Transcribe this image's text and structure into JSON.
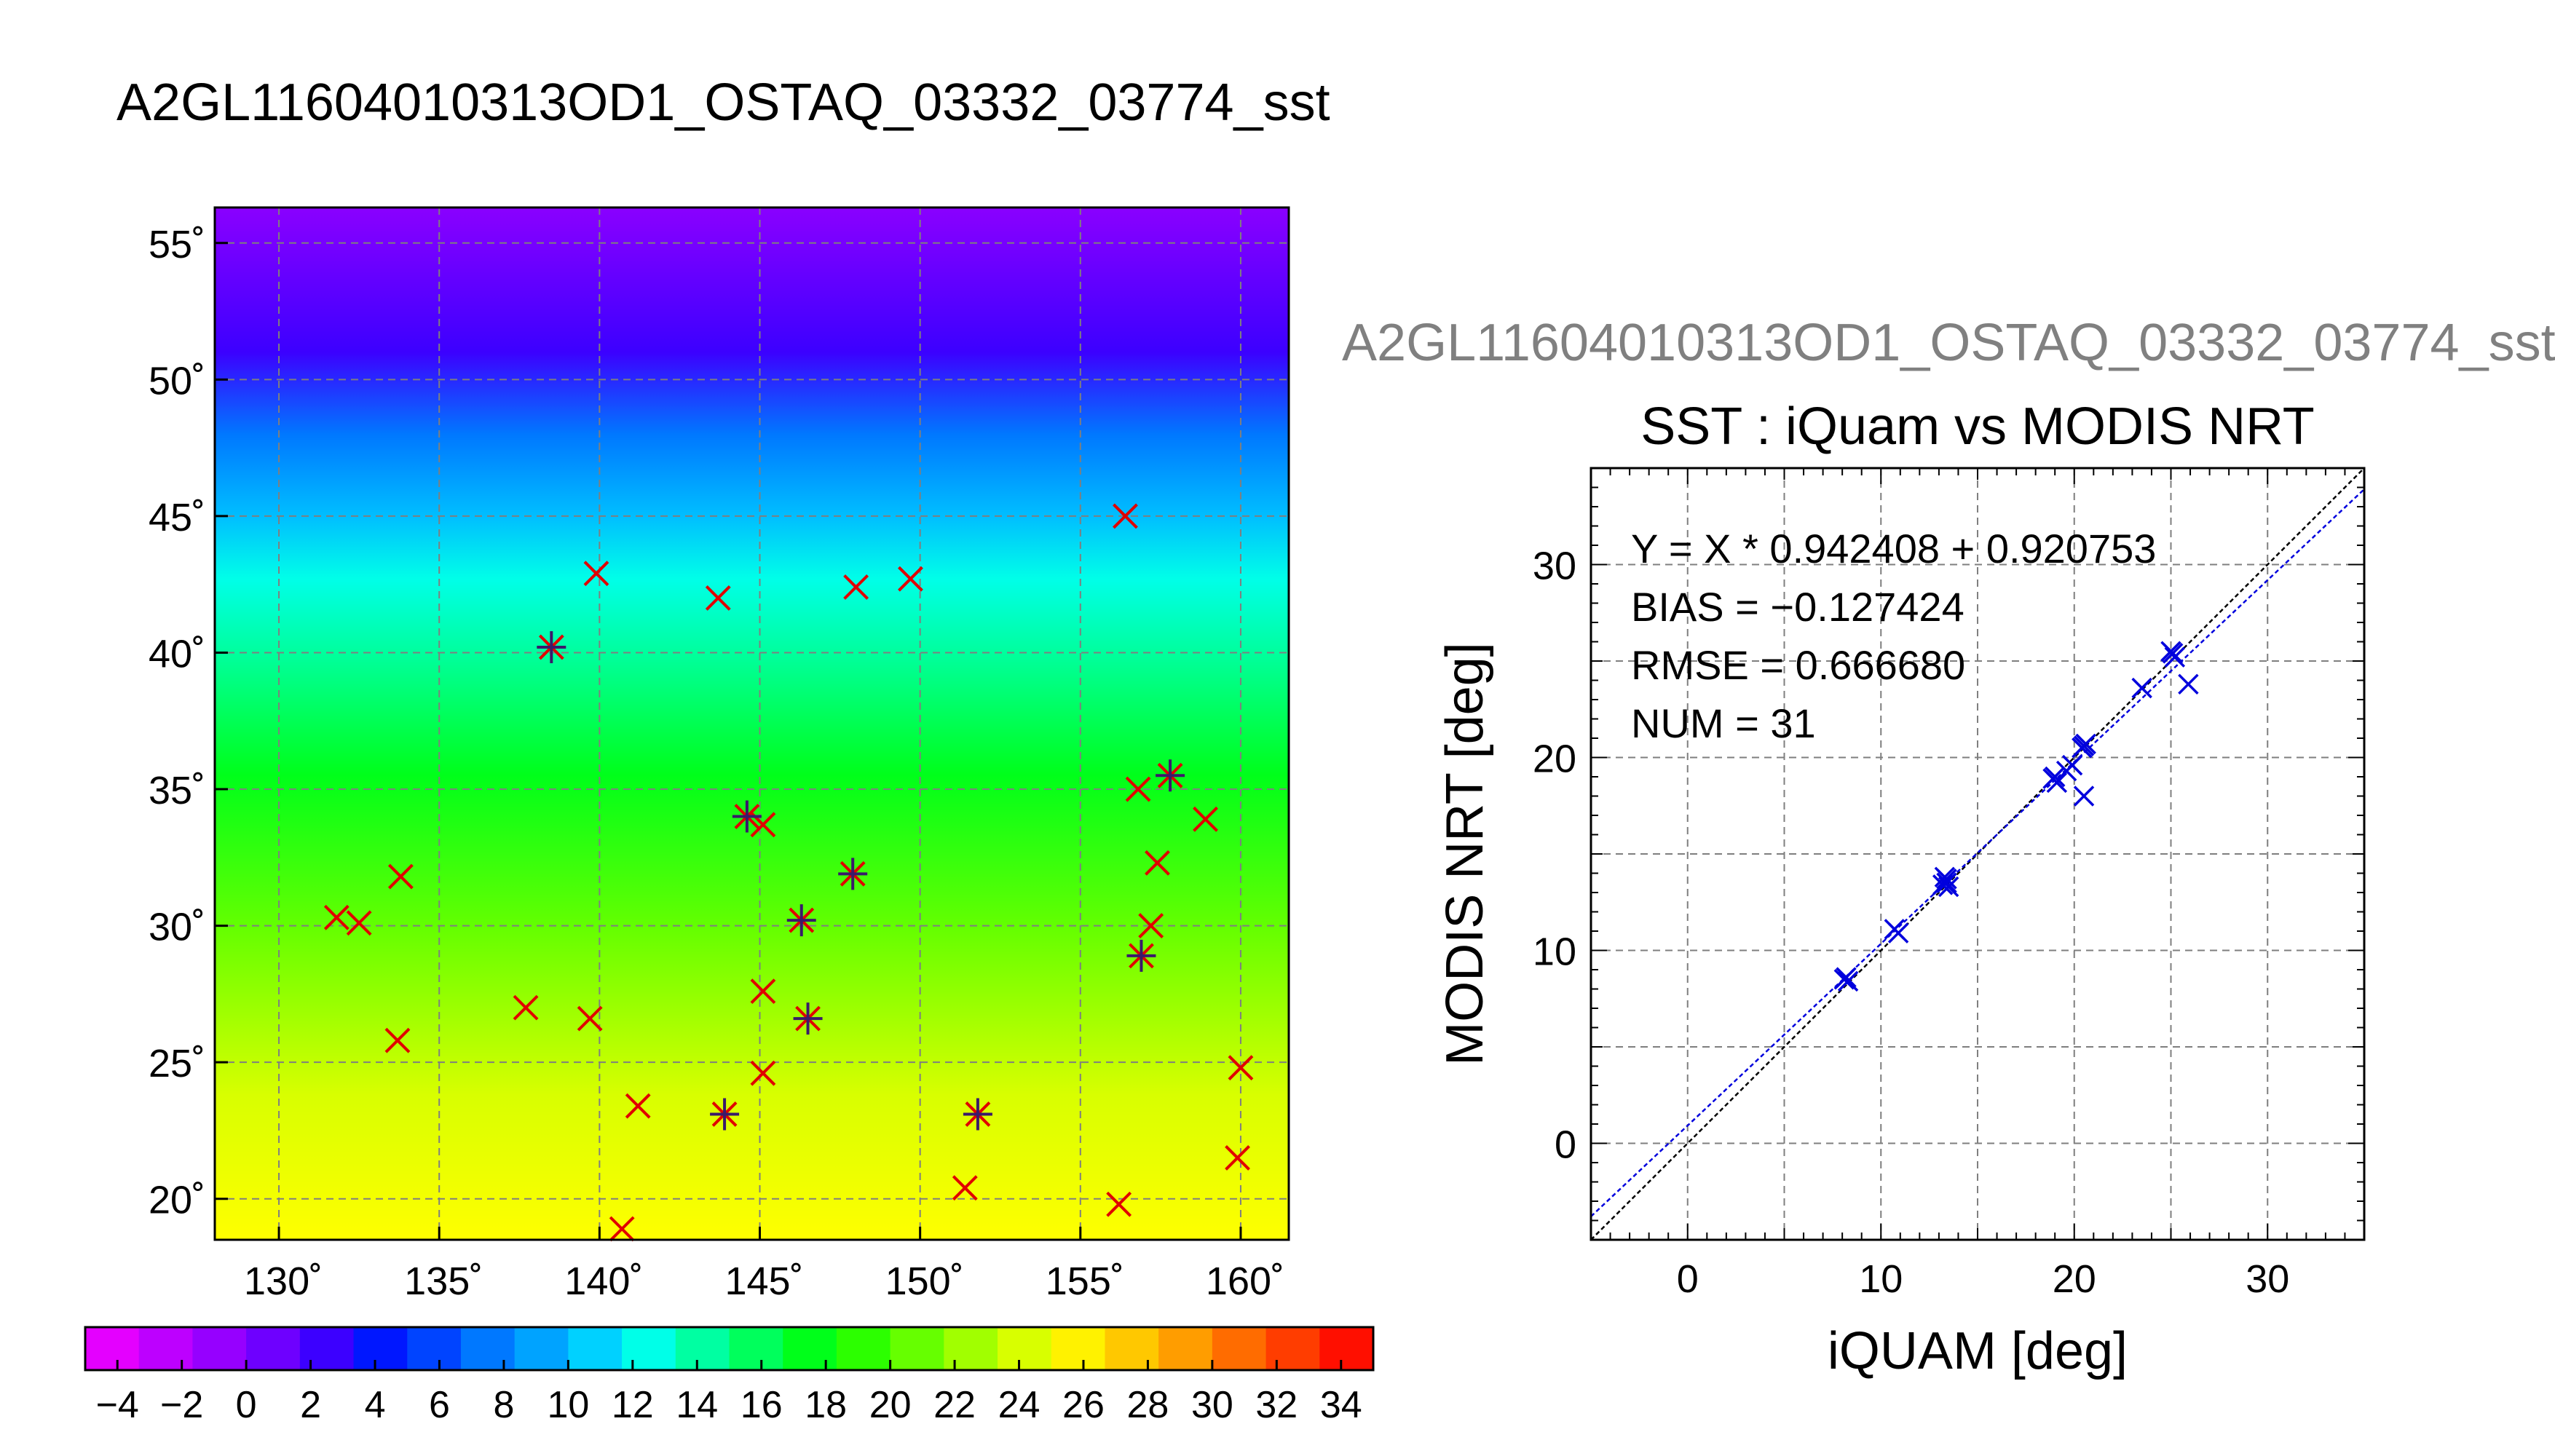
{
  "page_title": "A2GL11604010313OD1_OSTAQ_03332_03774_sst",
  "scatter_header": "A2GL11604010313OD1_OSTAQ_03332_03774_sst",
  "chart_data": [
    {
      "type": "map",
      "title": "A2GL11604010313OD1_OSTAQ_03332_03774_sst",
      "xlim": [
        128,
        161.5
      ],
      "ylim": [
        18.5,
        56.3
      ],
      "x_ticks": [
        130,
        135,
        140,
        145,
        150,
        155,
        160
      ],
      "y_ticks": [
        20,
        25,
        30,
        35,
        40,
        45,
        50,
        55
      ],
      "x_tick_labels": [
        "130˚",
        "135˚",
        "140˚",
        "145˚",
        "150˚",
        "155˚",
        "160˚"
      ],
      "y_tick_labels": [
        "20˚",
        "25˚",
        "30˚",
        "35˚",
        "40˚",
        "45˚",
        "50˚",
        "55˚"
      ],
      "grid": true,
      "colorbar": {
        "range": [
          -5,
          35
        ],
        "tick_labels": [
          "−4",
          "−2",
          "0",
          "2",
          "4",
          "6",
          "8",
          "10",
          "12",
          "14",
          "16",
          "18",
          "20",
          "22",
          "24",
          "26",
          "28",
          "30",
          "32",
          "34"
        ],
        "colors": [
          "#e400ff",
          "#bd00ff",
          "#9600ff",
          "#6e00ff",
          "#3c00ff",
          "#0017ff",
          "#0044ff",
          "#0078ff",
          "#00a3ff",
          "#00d1ff",
          "#00ffe8",
          "#00ffa2",
          "#00ff5c",
          "#00ff1a",
          "#2cff00",
          "#66ff00",
          "#a1ff00",
          "#d8ff00",
          "#fff200",
          "#ffc800",
          "#ff9d00",
          "#ff6c00",
          "#ff3d00",
          "#ff0f00"
        ]
      },
      "markers_red": [
        [
          131.8,
          30.3
        ],
        [
          132.5,
          30.1
        ],
        [
          133.8,
          31.8
        ],
        [
          133.7,
          25.8
        ],
        [
          137.7,
          27.0
        ],
        [
          139.7,
          26.6
        ],
        [
          141.2,
          23.4
        ],
        [
          140.7,
          18.9
        ],
        [
          139.9,
          42.9
        ],
        [
          138.5,
          40.2
        ],
        [
          143.7,
          42.0
        ],
        [
          148.0,
          42.4
        ],
        [
          149.7,
          42.7
        ],
        [
          144.6,
          34.0
        ],
        [
          145.1,
          33.7
        ],
        [
          146.3,
          30.2
        ],
        [
          147.9,
          31.9
        ],
        [
          145.1,
          27.6
        ],
        [
          145.1,
          24.6
        ],
        [
          146.5,
          26.6
        ],
        [
          143.9,
          23.1
        ],
        [
          151.8,
          23.1
        ],
        [
          151.4,
          20.4
        ],
        [
          156.2,
          19.8
        ],
        [
          156.4,
          45.0
        ],
        [
          156.8,
          35.0
        ],
        [
          157.4,
          32.3
        ],
        [
          157.2,
          30.0
        ],
        [
          156.9,
          28.9
        ],
        [
          157.8,
          35.5
        ],
        [
          158.9,
          33.9
        ],
        [
          160.0,
          24.8
        ],
        [
          159.9,
          21.5
        ]
      ],
      "markers_dark": [
        [
          138.5,
          40.2
        ],
        [
          144.6,
          34.0
        ],
        [
          146.3,
          30.2
        ],
        [
          147.9,
          31.9
        ],
        [
          146.5,
          26.6
        ],
        [
          143.9,
          23.1
        ],
        [
          151.8,
          23.1
        ],
        [
          156.9,
          28.9
        ],
        [
          157.8,
          35.5
        ]
      ]
    },
    {
      "type": "scatter",
      "title": "SST : iQuam vs MODIS NRT",
      "xlabel": "iQUAM [deg]",
      "ylabel": "MODIS NRT [deg]",
      "xlim": [
        -5,
        35
      ],
      "ylim": [
        -5,
        35
      ],
      "x_ticks": [
        0,
        10,
        20,
        30
      ],
      "y_ticks": [
        0,
        10,
        20,
        30
      ],
      "grid": true,
      "annotations": [
        "Y = X * 0.942408 + 0.920753",
        "BIAS = −0.127424",
        "RMSE = 0.666680",
        "NUM = 31"
      ],
      "fit": {
        "slope": 0.942408,
        "intercept": 0.920753,
        "color": "#0000dd"
      },
      "identity_line": true,
      "points": [
        [
          8.1,
          8.5
        ],
        [
          8.3,
          8.4
        ],
        [
          10.7,
          11.1
        ],
        [
          10.9,
          10.9
        ],
        [
          13.2,
          13.4
        ],
        [
          13.4,
          13.7
        ],
        [
          13.5,
          13.3
        ],
        [
          13.3,
          13.8
        ],
        [
          18.9,
          18.9
        ],
        [
          19.1,
          18.7
        ],
        [
          19.6,
          19.3
        ],
        [
          19.9,
          19.6
        ],
        [
          20.4,
          20.5
        ],
        [
          20.6,
          20.7
        ],
        [
          20.5,
          18.0
        ],
        [
          23.5,
          23.6
        ],
        [
          25.0,
          25.5
        ],
        [
          25.2,
          25.2
        ],
        [
          25.9,
          23.8
        ],
        [
          8.2,
          8.6
        ],
        [
          13.4,
          13.5
        ],
        [
          19.0,
          19.0
        ],
        [
          20.5,
          20.6
        ],
        [
          25.1,
          25.4
        ]
      ]
    }
  ]
}
